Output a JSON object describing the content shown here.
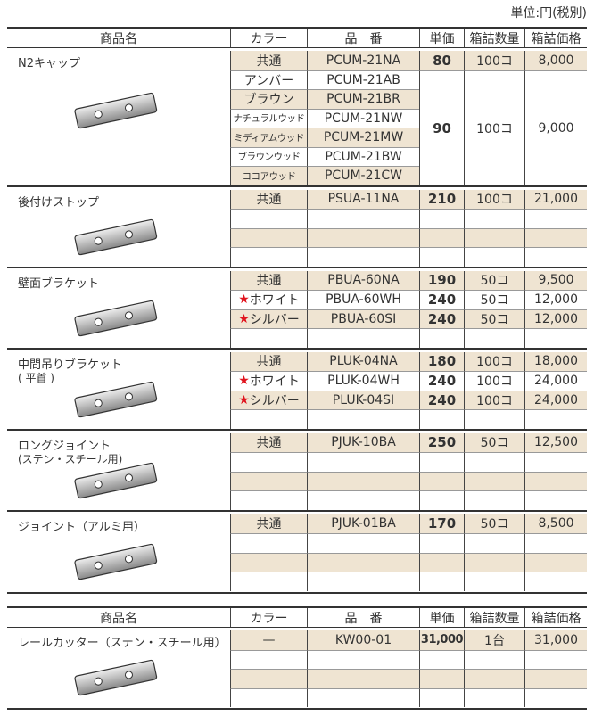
{
  "unit_note": "単位:円(税別)",
  "tables": [
    {
      "header": [
        "商品名",
        "カラー",
        "品　番",
        "単価",
        "箱詰数量",
        "箱詰価格"
      ],
      "groups": [
        {
          "name": "N2キャップ",
          "rows": [
            {
              "color": "共通",
              "part": "PCUM-21NA",
              "price": "80",
              "qty": "100コ",
              "box_price": "8,000"
            },
            {
              "color": "アンバー",
              "part": "PCUM-21AB",
              "price": "90",
              "qty": "100コ",
              "box_price": "9,000"
            },
            {
              "color": "ブラウン",
              "part": "PCUM-21BR"
            },
            {
              "color": "ナチュラルウッド",
              "part": "PCUM-21NW"
            },
            {
              "color": "ミディアムウッド",
              "part": "PCUM-21MW"
            },
            {
              "color": "ブラウンウッド",
              "part": "PCUM-21BW"
            },
            {
              "color": "ココアウッド",
              "part": "PCUM-21CW"
            }
          ]
        },
        {
          "name": "後付けストップ",
          "rows": [
            {
              "color": "共通",
              "part": "PSUA-11NA",
              "price": "210",
              "qty": "100コ",
              "box_price": "21,000"
            }
          ]
        },
        {
          "name": "壁面ブラケット",
          "rows": [
            {
              "color": "共通",
              "part": "PBUA-60NA",
              "price": "190",
              "qty": "50コ",
              "box_price": "9,500"
            },
            {
              "star": "★",
              "color": "ホワイト",
              "part": "PBUA-60WH",
              "price": "240",
              "qty": "50コ",
              "box_price": "12,000"
            },
            {
              "star": "★",
              "color": "シルバー",
              "part": "PBUA-60SI",
              "price": "240",
              "qty": "50コ",
              "box_price": "12,000"
            }
          ]
        },
        {
          "name": "中間吊りブラケット",
          "sub": "( 平首 )",
          "rows": [
            {
              "color": "共通",
              "part": "PLUK-04NA",
              "price": "180",
              "qty": "100コ",
              "box_price": "18,000"
            },
            {
              "star": "★",
              "color": "ホワイト",
              "part": "PLUK-04WH",
              "price": "240",
              "qty": "100コ",
              "box_price": "24,000"
            },
            {
              "star": "★",
              "color": "シルバー",
              "part": "PLUK-04SI",
              "price": "240",
              "qty": "100コ",
              "box_price": "24,000"
            }
          ]
        },
        {
          "name": "ロングジョイント",
          "sub": "(ステン・スチール用)",
          "rows": [
            {
              "color": "共通",
              "part": "PJUK-10BA",
              "price": "250",
              "qty": "50コ",
              "box_price": "12,500"
            }
          ]
        },
        {
          "name": "ジョイント（アルミ用）",
          "rows": [
            {
              "color": "共通",
              "part": "PJUK-01BA",
              "price": "170",
              "qty": "50コ",
              "box_price": "8,500"
            }
          ]
        }
      ]
    },
    {
      "header": [
        "商品名",
        "カラー",
        "品　番",
        "単価",
        "箱詰数量",
        "箱詰価格"
      ],
      "groups": [
        {
          "name": "レールカッター（ステン・スチール用）",
          "rows": [
            {
              "color": "—",
              "part": "KW00-01",
              "price": "31,000",
              "qty": "1台",
              "box_price": "31,000"
            }
          ]
        }
      ]
    }
  ]
}
